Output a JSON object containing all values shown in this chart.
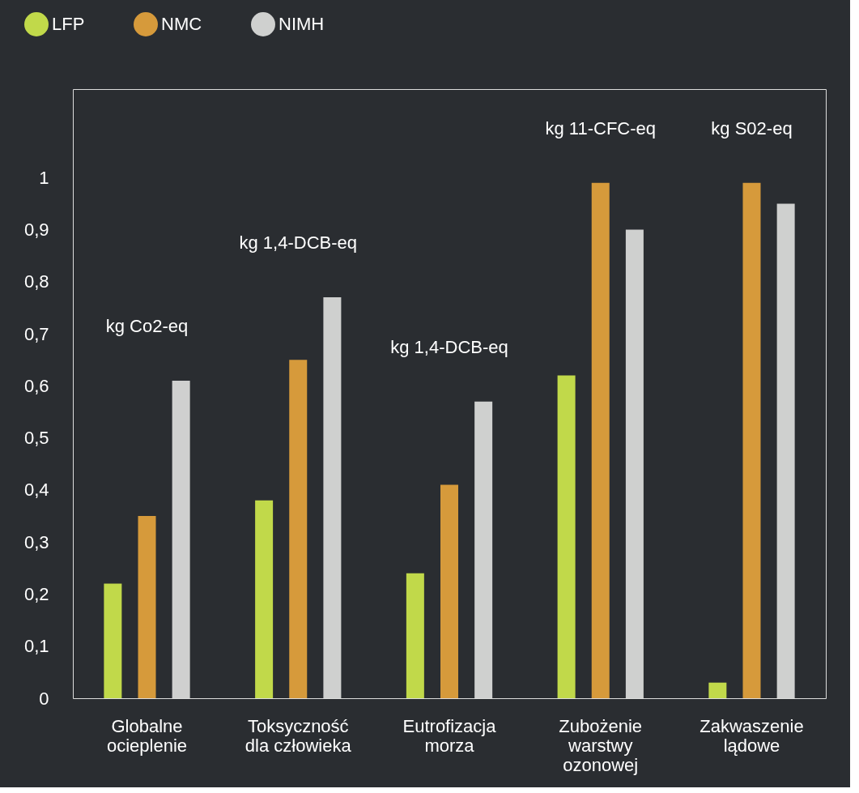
{
  "chart_data": {
    "type": "bar",
    "categories": [
      "Globalne\nocieplenie",
      "Toksyczność\ndla człowieka",
      "Eutrofizacja\nmorza",
      "Zubożenie\nwarstwy\nozonowej",
      "Zakwaszenie\nlądowe"
    ],
    "series": [
      {
        "name": "LFP",
        "color": "#c1d94a",
        "values": [
          0.22,
          0.38,
          0.24,
          0.62,
          0.03
        ]
      },
      {
        "name": "NMC",
        "color": "#d69a3b",
        "values": [
          0.35,
          0.65,
          0.41,
          0.99,
          0.99
        ]
      },
      {
        "name": "NIMH",
        "color": "#cfd0cf",
        "values": [
          0.61,
          0.77,
          0.57,
          0.9,
          0.95
        ]
      }
    ],
    "ylim": [
      0,
      1.17
    ],
    "yticks": [
      0,
      {
        "value": 0.1,
        "label": "0,1"
      },
      {
        "value": 0.2,
        "label": "0,2"
      },
      {
        "value": 0.3,
        "label": "0,3"
      },
      {
        "value": 0.4,
        "label": "0,4"
      },
      {
        "value": 0.5,
        "label": "0,5"
      },
      {
        "value": 0.6,
        "label": "0,6"
      },
      {
        "value": 0.7,
        "label": "0,7"
      },
      {
        "value": 0.8,
        "label": "0,8"
      },
      {
        "value": 0.9,
        "label": "0,9"
      },
      1
    ],
    "annotations": [
      "kg Co2-eq",
      "kg 1,4-DCB-eq",
      "kg 1,4-DCB-eq",
      "kg 11-CFC-eq",
      "kg S02-eq"
    ],
    "legend": "top left",
    "grid": false
  }
}
